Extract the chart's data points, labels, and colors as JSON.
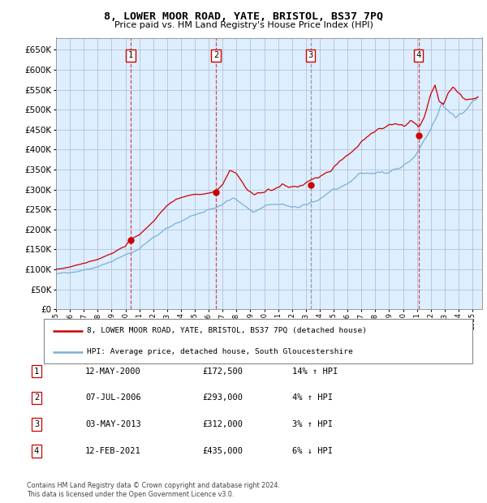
{
  "title": "8, LOWER MOOR ROAD, YATE, BRISTOL, BS37 7PQ",
  "subtitle": "Price paid vs. HM Land Registry's House Price Index (HPI)",
  "legend_line1": "8, LOWER MOOR ROAD, YATE, BRISTOL, BS37 7PQ (detached house)",
  "legend_line2": "HPI: Average price, detached house, South Gloucestershire",
  "footer1": "Contains HM Land Registry data © Crown copyright and database right 2024.",
  "footer2": "This data is licensed under the Open Government Licence v3.0.",
  "hpi_color": "#7ab0d4",
  "price_color": "#cc0000",
  "marker_color": "#cc0000",
  "vline_color_red": "#cc3333",
  "vline_color_grey": "#888899",
  "bg_color": "#ddeeff",
  "grid_color": "#b0b8cc",
  "purchases": [
    {
      "num": 1,
      "date_label": "12-MAY-2000",
      "price": 172500,
      "pct": "14%",
      "dir": "↑",
      "year": 2000.37
    },
    {
      "num": 2,
      "date_label": "07-JUL-2006",
      "price": 293000,
      "pct": "4%",
      "dir": "↑",
      "year": 2006.53
    },
    {
      "num": 3,
      "date_label": "03-MAY-2013",
      "price": 312000,
      "pct": "3%",
      "dir": "↑",
      "year": 2013.34
    },
    {
      "num": 4,
      "date_label": "12-FEB-2021",
      "price": 435000,
      "pct": "6%",
      "dir": "↓",
      "year": 2021.12
    }
  ],
  "ylim": [
    0,
    680000
  ],
  "yticks": [
    0,
    50000,
    100000,
    150000,
    200000,
    250000,
    300000,
    350000,
    400000,
    450000,
    500000,
    550000,
    600000,
    650000
  ],
  "xlim_start": 1995.0,
  "xlim_end": 2025.7,
  "xticks": [
    1995,
    1996,
    1997,
    1998,
    1999,
    2000,
    2001,
    2002,
    2003,
    2004,
    2005,
    2006,
    2007,
    2008,
    2009,
    2010,
    2011,
    2012,
    2013,
    2014,
    2015,
    2016,
    2017,
    2018,
    2019,
    2020,
    2021,
    2022,
    2023,
    2024,
    2025
  ]
}
